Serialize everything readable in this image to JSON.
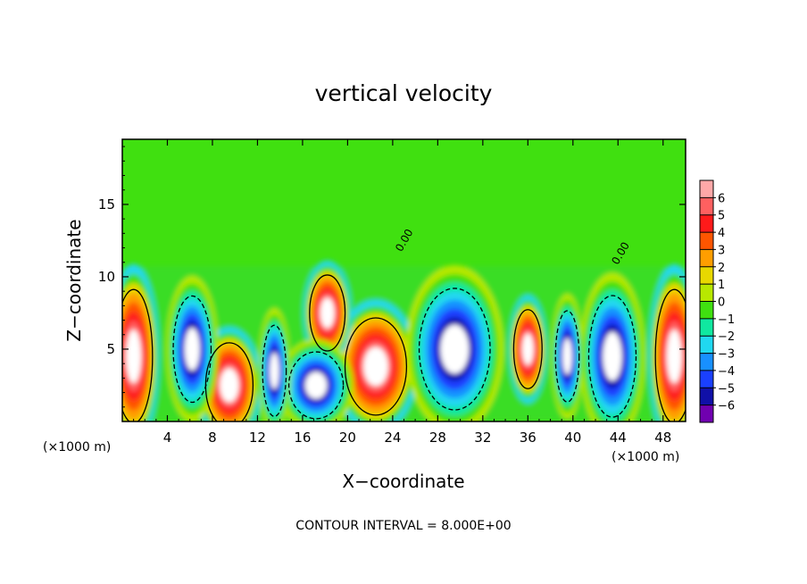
{
  "chart_data": {
    "type": "heatmap",
    "title": "vertical velocity",
    "xlabel": "X−coordinate",
    "ylabel": "Z−coordinate",
    "x_unit_left": "(×1000 m)",
    "x_unit_right": "(×1000 m)",
    "xlim": [
      0,
      50
    ],
    "ylim": [
      0,
      19.5
    ],
    "x_ticks": [
      4,
      8,
      12,
      16,
      20,
      24,
      28,
      32,
      36,
      40,
      44,
      48
    ],
    "y_ticks": [
      5,
      10,
      15
    ],
    "contour_labels": [
      {
        "x": 25.3,
        "y": 12.4,
        "text": "0.00"
      },
      {
        "x": 44.5,
        "y": 11.5,
        "text": "0.00"
      }
    ],
    "footer": "CONTOUR INTERVAL = 8.000E+00",
    "colorbar": {
      "levels": [
        "6",
        "5",
        "4",
        "3",
        "2",
        "1",
        "0",
        "−1",
        "−2",
        "−3",
        "−4",
        "−5",
        "−6"
      ],
      "colors": [
        "#ffa8a8",
        "#ff6060",
        "#ff1a1a",
        "#ff5500",
        "#ff9e00",
        "#e8d800",
        "#b8e800",
        "#40e010",
        "#10e8a0",
        "#20d8f0",
        "#1890ff",
        "#1a40ff",
        "#1010a8",
        "#7000b0"
      ]
    },
    "features": [
      {
        "kind": "updraft",
        "x": 1.0,
        "z": 4.5,
        "rx": 1.6,
        "rz": 4.4
      },
      {
        "kind": "updraft",
        "x": 49.0,
        "z": 4.5,
        "rx": 1.6,
        "rz": 4.4
      },
      {
        "kind": "updraft",
        "x": 22.5,
        "z": 3.8,
        "rx": 2.6,
        "rz": 3.2
      },
      {
        "kind": "updraft",
        "x": 9.5,
        "z": 2.5,
        "rx": 2.0,
        "rz": 2.8
      },
      {
        "kind": "updraft",
        "x": 18.2,
        "z": 7.5,
        "rx": 1.5,
        "rz": 2.5
      },
      {
        "kind": "updraft",
        "x": 36.0,
        "z": 5.0,
        "rx": 1.2,
        "rz": 2.6
      },
      {
        "kind": "downdraft",
        "x": 6.2,
        "z": 5.0,
        "rx": 1.6,
        "rz": 3.5
      },
      {
        "kind": "downdraft",
        "x": 17.2,
        "z": 2.5,
        "rx": 2.3,
        "rz": 2.2
      },
      {
        "kind": "downdraft",
        "x": 29.5,
        "z": 5.0,
        "rx": 3.0,
        "rz": 4.0
      },
      {
        "kind": "downdraft",
        "x": 43.5,
        "z": 4.5,
        "rx": 2.0,
        "rz": 4.0
      },
      {
        "kind": "downdraft",
        "x": 13.5,
        "z": 3.5,
        "rx": 1.0,
        "rz": 3.0
      },
      {
        "kind": "downdraft",
        "x": 39.5,
        "z": 4.5,
        "rx": 1.0,
        "rz": 3.0
      }
    ],
    "grid": false
  }
}
